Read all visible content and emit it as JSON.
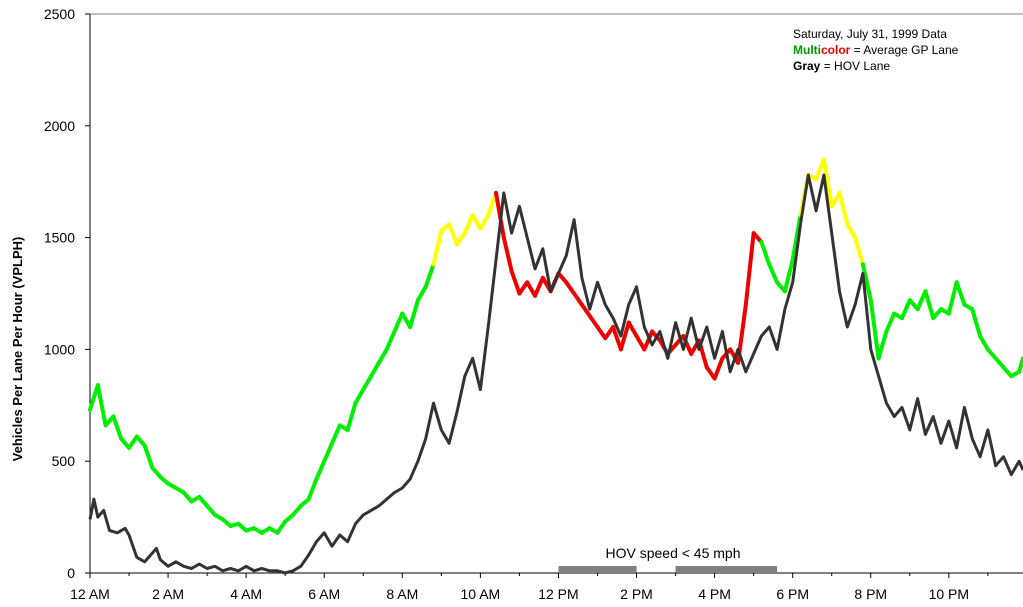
{
  "chart_data": {
    "type": "line",
    "ylabel": "Vehicles Per Lane Per Hour (VPLPH)",
    "xlabel": "",
    "ylim": [
      0,
      2500
    ],
    "yticks": [
      "0",
      "500",
      "1000",
      "1500",
      "2000",
      "2500"
    ],
    "xlim": [
      0,
      23.9
    ],
    "xticks": [
      {
        "hour": 0,
        "label": "12 AM"
      },
      {
        "hour": 2,
        "label": "2 AM"
      },
      {
        "hour": 4,
        "label": "4 AM"
      },
      {
        "hour": 6,
        "label": "6 AM"
      },
      {
        "hour": 8,
        "label": "8 AM"
      },
      {
        "hour": 10,
        "label": "10 AM"
      },
      {
        "hour": 12,
        "label": "12 PM"
      },
      {
        "hour": 14,
        "label": "2 PM"
      },
      {
        "hour": 16,
        "label": "4 PM"
      },
      {
        "hour": 18,
        "label": "6 PM"
      },
      {
        "hour": 20,
        "label": "8 PM"
      },
      {
        "hour": 22,
        "label": "10 PM"
      }
    ],
    "grid": false,
    "legend": {
      "placement": "top-right",
      "line1": "Saturday, July 31, 1999 Data",
      "line2_part1": "Multi",
      "line2_part2": "color",
      "line2_part3": " = Average GP Lane",
      "line3_part1": "Gray",
      "line3_part2": " = HOV Lane"
    },
    "annotation": {
      "text": "HOV speed < 45 mph",
      "periods": [
        [
          12.0,
          14.0
        ],
        [
          15.0,
          17.6
        ]
      ]
    },
    "colors": {
      "green": "#00ee00",
      "yellow": "#ffff00",
      "red": "#ee0000",
      "gray": "#333333",
      "bar": "#808080",
      "legend_green": "#009900",
      "legend_red": "#ee0000"
    },
    "series": [
      {
        "name": "Average GP Lane",
        "points": [
          [
            0.0,
            730
          ],
          [
            0.2,
            840
          ],
          [
            0.4,
            660
          ],
          [
            0.6,
            700
          ],
          [
            0.8,
            600
          ],
          [
            1.0,
            560
          ],
          [
            1.2,
            610
          ],
          [
            1.4,
            570
          ],
          [
            1.6,
            470
          ],
          [
            1.8,
            430
          ],
          [
            2.0,
            400
          ],
          [
            2.2,
            380
          ],
          [
            2.4,
            360
          ],
          [
            2.6,
            320
          ],
          [
            2.8,
            340
          ],
          [
            3.0,
            300
          ],
          [
            3.2,
            260
          ],
          [
            3.4,
            240
          ],
          [
            3.6,
            210
          ],
          [
            3.8,
            220
          ],
          [
            4.0,
            190
          ],
          [
            4.2,
            200
          ],
          [
            4.4,
            180
          ],
          [
            4.6,
            200
          ],
          [
            4.8,
            180
          ],
          [
            5.0,
            230
          ],
          [
            5.2,
            260
          ],
          [
            5.4,
            300
          ],
          [
            5.6,
            330
          ],
          [
            5.8,
            420
          ],
          [
            6.0,
            500
          ],
          [
            6.2,
            580
          ],
          [
            6.4,
            660
          ],
          [
            6.6,
            640
          ],
          [
            6.8,
            760
          ],
          [
            7.0,
            820
          ],
          [
            7.2,
            880
          ],
          [
            7.4,
            940
          ],
          [
            7.6,
            1000
          ],
          [
            7.8,
            1080
          ],
          [
            8.0,
            1160
          ],
          [
            8.2,
            1100
          ],
          [
            8.4,
            1220
          ],
          [
            8.6,
            1280
          ],
          [
            8.8,
            1380
          ],
          [
            9.0,
            1530,
            "y"
          ],
          [
            9.2,
            1560,
            "y"
          ],
          [
            9.4,
            1470,
            "y"
          ],
          [
            9.6,
            1520,
            "y"
          ],
          [
            9.8,
            1600,
            "y"
          ],
          [
            10.0,
            1540,
            "y"
          ],
          [
            10.2,
            1600,
            "y"
          ],
          [
            10.4,
            1700,
            "y"
          ],
          [
            10.6,
            1500,
            "r"
          ],
          [
            10.8,
            1350,
            "r"
          ],
          [
            11.0,
            1250,
            "r"
          ],
          [
            11.2,
            1300,
            "r"
          ],
          [
            11.4,
            1240,
            "r"
          ],
          [
            11.6,
            1320,
            "r"
          ],
          [
            11.8,
            1260,
            "r"
          ],
          [
            12.0,
            1340,
            "r"
          ],
          [
            12.2,
            1300,
            "r"
          ],
          [
            12.4,
            1250,
            "r"
          ],
          [
            12.6,
            1200,
            "r"
          ],
          [
            12.8,
            1150,
            "r"
          ],
          [
            13.0,
            1100,
            "r"
          ],
          [
            13.2,
            1050,
            "r"
          ],
          [
            13.4,
            1100,
            "r"
          ],
          [
            13.6,
            1000,
            "r"
          ],
          [
            13.8,
            1120,
            "r"
          ],
          [
            14.0,
            1060,
            "r"
          ],
          [
            14.2,
            1000,
            "r"
          ],
          [
            14.4,
            1080,
            "r"
          ],
          [
            14.6,
            1040,
            "r"
          ],
          [
            14.8,
            980,
            "r"
          ],
          [
            15.0,
            1020,
            "r"
          ],
          [
            15.2,
            1060,
            "r"
          ],
          [
            15.4,
            980,
            "r"
          ],
          [
            15.6,
            1040,
            "r"
          ],
          [
            15.8,
            920,
            "r"
          ],
          [
            16.0,
            870,
            "r"
          ],
          [
            16.2,
            960,
            "r"
          ],
          [
            16.4,
            1000,
            "r"
          ],
          [
            16.6,
            940,
            "r"
          ],
          [
            16.8,
            1200,
            "r"
          ],
          [
            17.0,
            1520,
            "r"
          ],
          [
            17.2,
            1480
          ],
          [
            17.4,
            1380
          ],
          [
            17.6,
            1300
          ],
          [
            17.8,
            1260
          ],
          [
            18.0,
            1400
          ],
          [
            18.2,
            1600
          ],
          [
            18.4,
            1780,
            "y"
          ],
          [
            18.6,
            1760,
            "y"
          ],
          [
            18.8,
            1850,
            "y"
          ],
          [
            19.0,
            1640,
            "y"
          ],
          [
            19.2,
            1700,
            "y"
          ],
          [
            19.4,
            1560,
            "y"
          ],
          [
            19.6,
            1500,
            "y"
          ],
          [
            19.8,
            1380
          ],
          [
            20.0,
            1220
          ],
          [
            20.2,
            960
          ],
          [
            20.4,
            1080
          ],
          [
            20.6,
            1160
          ],
          [
            20.8,
            1140
          ],
          [
            21.0,
            1220
          ],
          [
            21.2,
            1180
          ],
          [
            21.4,
            1260
          ],
          [
            21.6,
            1140
          ],
          [
            21.8,
            1180
          ],
          [
            22.0,
            1160
          ],
          [
            22.2,
            1300
          ],
          [
            22.4,
            1200
          ],
          [
            22.6,
            1180
          ],
          [
            22.8,
            1060
          ],
          [
            23.0,
            1000
          ],
          [
            23.2,
            960
          ],
          [
            23.4,
            920
          ],
          [
            23.6,
            880
          ],
          [
            23.8,
            900
          ],
          [
            23.9,
            960
          ]
        ]
      },
      {
        "name": "HOV Lane",
        "points": [
          [
            0.0,
            240
          ],
          [
            0.1,
            330
          ],
          [
            0.2,
            250
          ],
          [
            0.35,
            280
          ],
          [
            0.5,
            190
          ],
          [
            0.7,
            180
          ],
          [
            0.9,
            200
          ],
          [
            1.0,
            170
          ],
          [
            1.2,
            70
          ],
          [
            1.4,
            50
          ],
          [
            1.6,
            90
          ],
          [
            1.7,
            110
          ],
          [
            1.8,
            60
          ],
          [
            2.0,
            30
          ],
          [
            2.2,
            50
          ],
          [
            2.4,
            30
          ],
          [
            2.6,
            20
          ],
          [
            2.8,
            40
          ],
          [
            3.0,
            20
          ],
          [
            3.2,
            30
          ],
          [
            3.4,
            10
          ],
          [
            3.6,
            20
          ],
          [
            3.8,
            10
          ],
          [
            4.0,
            30
          ],
          [
            4.2,
            10
          ],
          [
            4.4,
            20
          ],
          [
            4.6,
            10
          ],
          [
            4.8,
            10
          ],
          [
            5.0,
            0
          ],
          [
            5.2,
            10
          ],
          [
            5.4,
            30
          ],
          [
            5.6,
            80
          ],
          [
            5.8,
            140
          ],
          [
            6.0,
            180
          ],
          [
            6.2,
            120
          ],
          [
            6.4,
            170
          ],
          [
            6.6,
            140
          ],
          [
            6.8,
            220
          ],
          [
            7.0,
            260
          ],
          [
            7.2,
            280
          ],
          [
            7.4,
            300
          ],
          [
            7.6,
            330
          ],
          [
            7.8,
            360
          ],
          [
            8.0,
            380
          ],
          [
            8.2,
            420
          ],
          [
            8.4,
            500
          ],
          [
            8.6,
            600
          ],
          [
            8.8,
            760
          ],
          [
            9.0,
            640
          ],
          [
            9.2,
            580
          ],
          [
            9.4,
            720
          ],
          [
            9.6,
            880
          ],
          [
            9.8,
            960
          ],
          [
            10.0,
            820
          ],
          [
            10.2,
            1100
          ],
          [
            10.4,
            1400
          ],
          [
            10.6,
            1700
          ],
          [
            10.8,
            1520
          ],
          [
            11.0,
            1640
          ],
          [
            11.2,
            1500
          ],
          [
            11.4,
            1360
          ],
          [
            11.6,
            1450
          ],
          [
            11.8,
            1260
          ],
          [
            12.0,
            1340
          ],
          [
            12.2,
            1420
          ],
          [
            12.4,
            1580
          ],
          [
            12.6,
            1320
          ],
          [
            12.8,
            1180
          ],
          [
            13.0,
            1300
          ],
          [
            13.2,
            1200
          ],
          [
            13.4,
            1140
          ],
          [
            13.6,
            1060
          ],
          [
            13.8,
            1200
          ],
          [
            14.0,
            1280
          ],
          [
            14.2,
            1100
          ],
          [
            14.4,
            1020
          ],
          [
            14.6,
            1080
          ],
          [
            14.8,
            960
          ],
          [
            15.0,
            1120
          ],
          [
            15.2,
            1000
          ],
          [
            15.4,
            1140
          ],
          [
            15.6,
            1000
          ],
          [
            15.8,
            1100
          ],
          [
            16.0,
            960
          ],
          [
            16.2,
            1080
          ],
          [
            16.4,
            900
          ],
          [
            16.6,
            1000
          ],
          [
            16.8,
            900
          ],
          [
            17.0,
            980
          ],
          [
            17.2,
            1060
          ],
          [
            17.4,
            1100
          ],
          [
            17.6,
            1000
          ],
          [
            17.8,
            1180
          ],
          [
            18.0,
            1300
          ],
          [
            18.2,
            1560
          ],
          [
            18.4,
            1780
          ],
          [
            18.6,
            1620
          ],
          [
            18.8,
            1780
          ],
          [
            19.0,
            1520
          ],
          [
            19.2,
            1260
          ],
          [
            19.4,
            1100
          ],
          [
            19.6,
            1200
          ],
          [
            19.8,
            1340
          ],
          [
            20.0,
            1000
          ],
          [
            20.2,
            880
          ],
          [
            20.4,
            760
          ],
          [
            20.6,
            700
          ],
          [
            20.8,
            740
          ],
          [
            21.0,
            640
          ],
          [
            21.2,
            780
          ],
          [
            21.4,
            620
          ],
          [
            21.6,
            700
          ],
          [
            21.8,
            580
          ],
          [
            22.0,
            680
          ],
          [
            22.2,
            560
          ],
          [
            22.4,
            740
          ],
          [
            22.6,
            600
          ],
          [
            22.8,
            520
          ],
          [
            23.0,
            640
          ],
          [
            23.2,
            480
          ],
          [
            23.4,
            520
          ],
          [
            23.6,
            440
          ],
          [
            23.8,
            500
          ],
          [
            23.9,
            460
          ]
        ]
      }
    ]
  }
}
